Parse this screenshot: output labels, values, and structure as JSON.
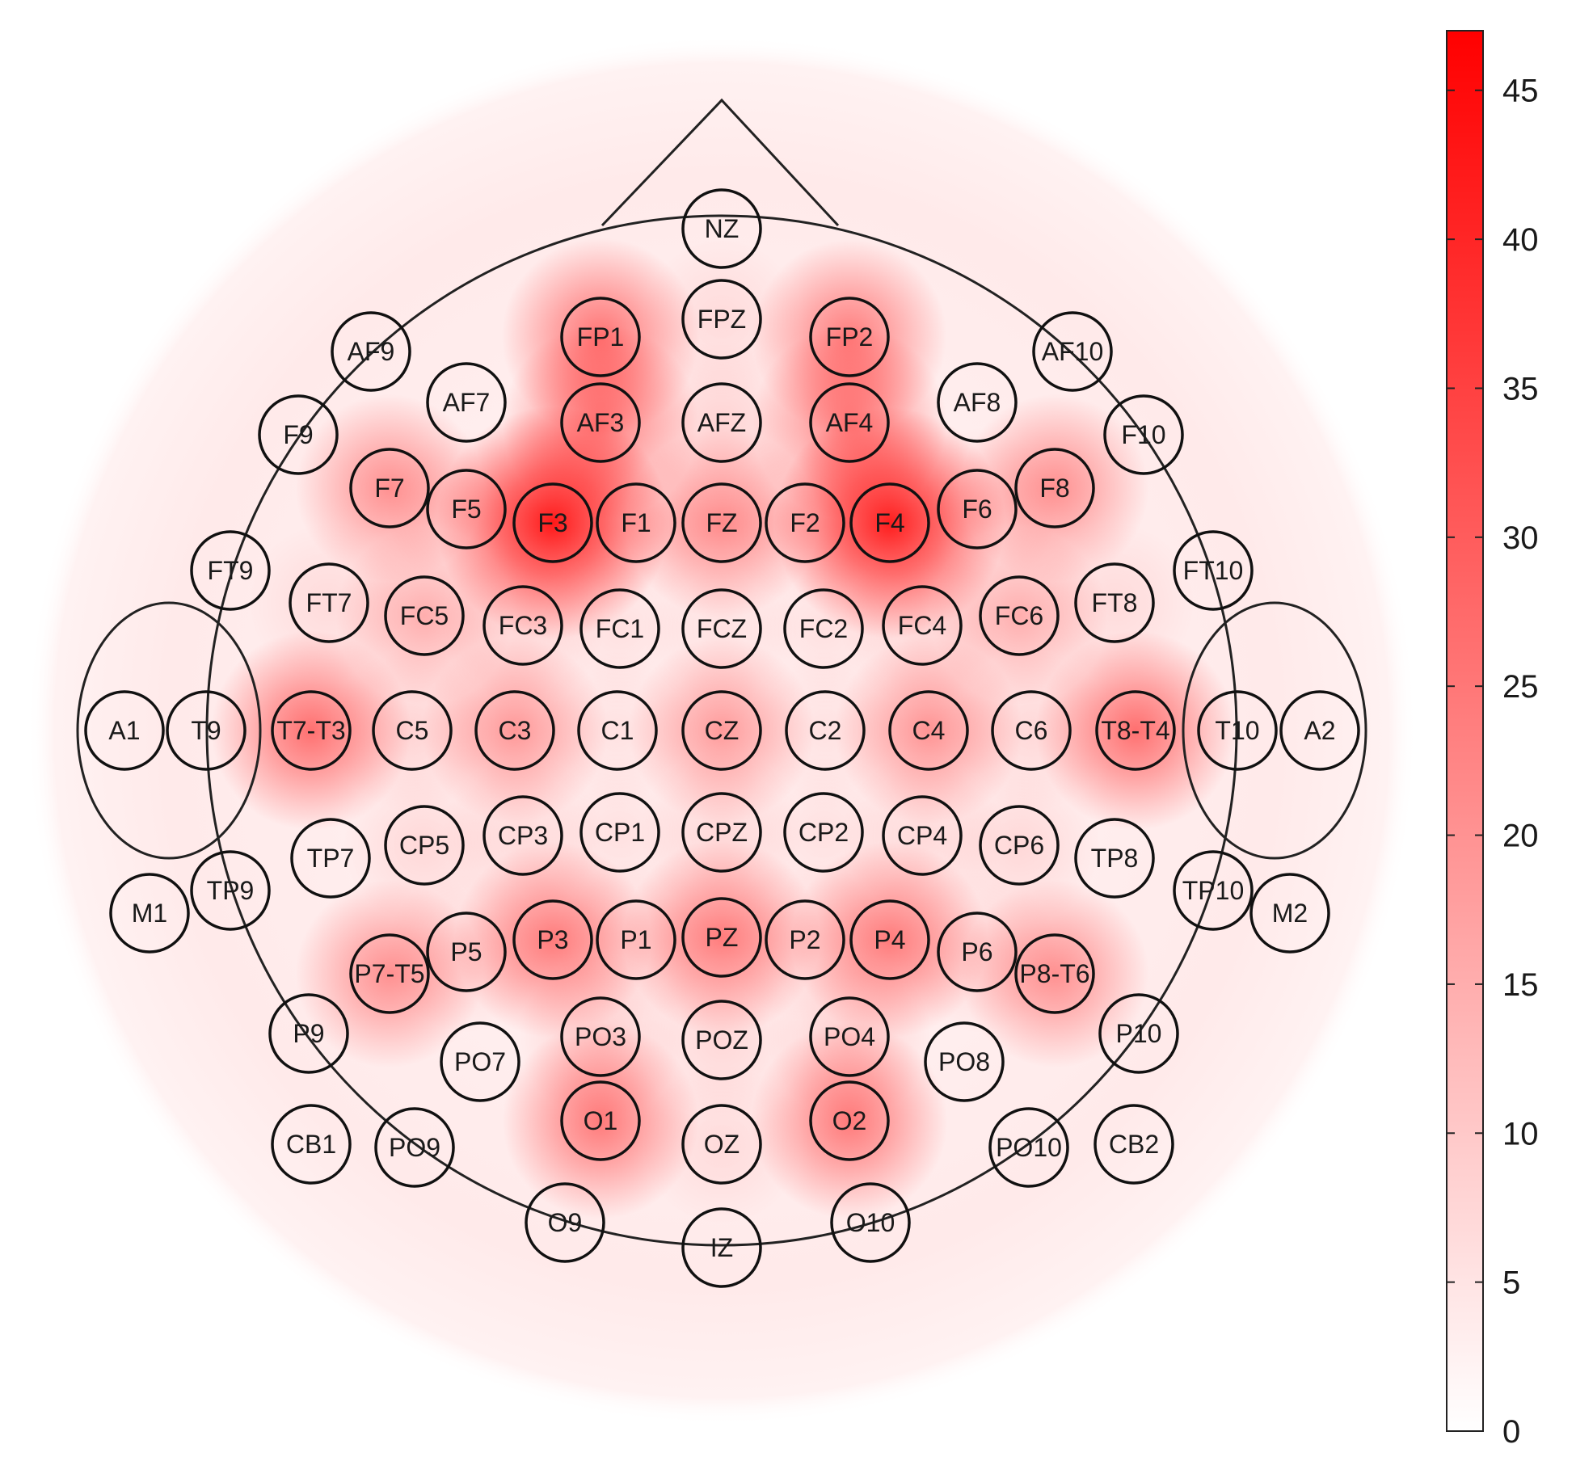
{
  "chart_data": {
    "type": "heatmap",
    "subtype": "eeg-topographic-map",
    "title": "",
    "colorbar": {
      "range": [
        0,
        47
      ],
      "ticks": [
        0,
        5,
        10,
        15,
        20,
        25,
        30,
        35,
        40,
        45
      ],
      "tick_labels": [
        "0",
        "5",
        "10",
        "15",
        "20",
        "25",
        "30",
        "35",
        "40",
        "45"
      ],
      "color_low": "#ffffff",
      "color_high": "#ff0000"
    },
    "electrodes": [
      {
        "label": "NZ",
        "value": 2
      },
      {
        "label": "FP1",
        "value": 26
      },
      {
        "label": "FPZ",
        "value": 4
      },
      {
        "label": "FP2",
        "value": 24
      },
      {
        "label": "AF9",
        "value": 2
      },
      {
        "label": "AF7",
        "value": 3
      },
      {
        "label": "AF3",
        "value": 25
      },
      {
        "label": "AFZ",
        "value": 6
      },
      {
        "label": "AF4",
        "value": 24
      },
      {
        "label": "AF8",
        "value": 3
      },
      {
        "label": "AF10",
        "value": 2
      },
      {
        "label": "F9",
        "value": 2
      },
      {
        "label": "F7",
        "value": 20
      },
      {
        "label": "F5",
        "value": 5
      },
      {
        "label": "F3",
        "value": 46
      },
      {
        "label": "F1",
        "value": 5
      },
      {
        "label": "FZ",
        "value": 22
      },
      {
        "label": "F2",
        "value": 5
      },
      {
        "label": "F4",
        "value": 45
      },
      {
        "label": "F6",
        "value": 5
      },
      {
        "label": "F8",
        "value": 20
      },
      {
        "label": "F10",
        "value": 2
      },
      {
        "label": "FT9",
        "value": 2
      },
      {
        "label": "FT7",
        "value": 4
      },
      {
        "label": "FC5",
        "value": 14
      },
      {
        "label": "FC3",
        "value": 6
      },
      {
        "label": "FC1",
        "value": 4
      },
      {
        "label": "FCZ",
        "value": 4
      },
      {
        "label": "FC2",
        "value": 4
      },
      {
        "label": "FC4",
        "value": 6
      },
      {
        "label": "FC6",
        "value": 14
      },
      {
        "label": "FT8",
        "value": 4
      },
      {
        "label": "FT10",
        "value": 2
      },
      {
        "label": "A1",
        "value": 1
      },
      {
        "label": "T9",
        "value": 2
      },
      {
        "label": "T7-T3",
        "value": 27
      },
      {
        "label": "C5",
        "value": 6
      },
      {
        "label": "C3",
        "value": 19
      },
      {
        "label": "C1",
        "value": 4
      },
      {
        "label": "CZ",
        "value": 19
      },
      {
        "label": "C2",
        "value": 4
      },
      {
        "label": "C4",
        "value": 20
      },
      {
        "label": "C6",
        "value": 5
      },
      {
        "label": "T8-T4",
        "value": 27
      },
      {
        "label": "T10",
        "value": 2
      },
      {
        "label": "A2",
        "value": 1
      },
      {
        "label": "TP7",
        "value": 3
      },
      {
        "label": "CP5",
        "value": 5
      },
      {
        "label": "CP3",
        "value": 5
      },
      {
        "label": "CP1",
        "value": 4
      },
      {
        "label": "CPZ",
        "value": 6
      },
      {
        "label": "CP2",
        "value": 4
      },
      {
        "label": "CP4",
        "value": 5
      },
      {
        "label": "CP6",
        "value": 5
      },
      {
        "label": "TP8",
        "value": 3
      },
      {
        "label": "M1",
        "value": 1
      },
      {
        "label": "TP9",
        "value": 2
      },
      {
        "label": "TP10",
        "value": 2
      },
      {
        "label": "M2",
        "value": 1
      },
      {
        "label": "P7-T5",
        "value": 20
      },
      {
        "label": "P5",
        "value": 5
      },
      {
        "label": "P3",
        "value": 25
      },
      {
        "label": "P1",
        "value": 5
      },
      {
        "label": "PZ",
        "value": 25
      },
      {
        "label": "P2",
        "value": 5
      },
      {
        "label": "P4",
        "value": 25
      },
      {
        "label": "P6",
        "value": 5
      },
      {
        "label": "P8-T6",
        "value": 20
      },
      {
        "label": "P9",
        "value": 2
      },
      {
        "label": "PO7",
        "value": 3
      },
      {
        "label": "PO3",
        "value": 7
      },
      {
        "label": "POZ",
        "value": 5
      },
      {
        "label": "PO4",
        "value": 7
      },
      {
        "label": "PO8",
        "value": 3
      },
      {
        "label": "P10",
        "value": 2
      },
      {
        "label": "CB1",
        "value": 2
      },
      {
        "label": "PO9",
        "value": 2
      },
      {
        "label": "O1",
        "value": 25
      },
      {
        "label": "OZ",
        "value": 4
      },
      {
        "label": "O2",
        "value": 25
      },
      {
        "label": "PO10",
        "value": 2
      },
      {
        "label": "CB2",
        "value": 2
      },
      {
        "label": "O9",
        "value": 2
      },
      {
        "label": "IZ",
        "value": 2
      },
      {
        "label": "O10",
        "value": 2
      }
    ]
  }
}
